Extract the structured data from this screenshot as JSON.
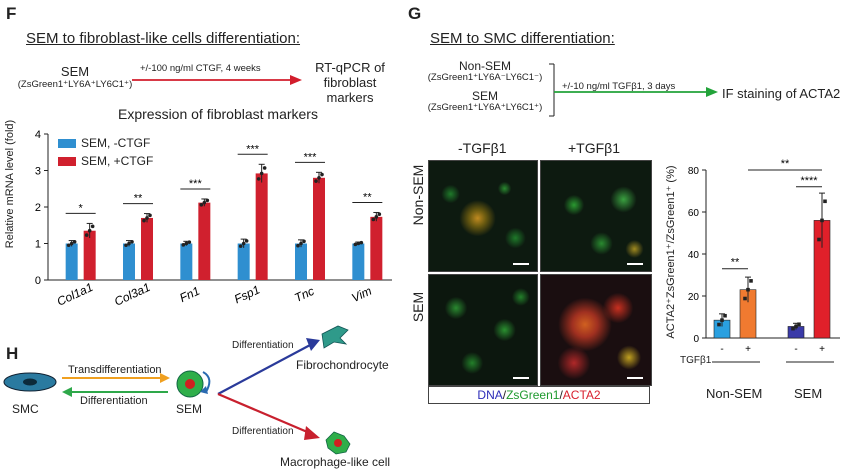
{
  "panel_F": {
    "letter": "F",
    "title": "SEM to fibroblast-like cells differentiation:",
    "source_line1": "SEM",
    "source_line2": "(ZsGreen1⁺LY6A⁺LY6C1⁺)",
    "arrow_label": "+/-100 ng/ml CTGF, 4 weeks",
    "target_line1": "RT-qPCR of",
    "target_line2": "fibroblast markers",
    "colors": {
      "control": "#2f8fd0",
      "treated": "#d0202e",
      "arrow": "#d21d2c"
    }
  },
  "panel_G": {
    "letter": "G",
    "title": "SEM to SMC differentiation:",
    "source1_line1": "Non-SEM",
    "source1_line2": "(ZsGreen1⁺LY6A⁻LY6C1⁻)",
    "source2_line1": "SEM",
    "source2_line2": "(ZsGreen1⁺LY6A⁺LY6C1⁺)",
    "arrow_label": "+/-10 ng/ml TGFβ1, 3 days",
    "target": "IF staining of ACTA2",
    "col_minus": "-TGFβ1",
    "col_plus": "+TGFβ1",
    "row_nonsem": "Non-SEM",
    "row_sem": "SEM",
    "stain_dna": "DNA",
    "stain_sep1": "/",
    "stain_zs": "ZsGreen1",
    "stain_sep2": "/",
    "stain_acta": "ACTA2",
    "colors": {
      "arrow": "#22a33a",
      "dna": "#2b2bb8",
      "zs": "#1e9a2e",
      "acta": "#d8202e"
    }
  },
  "panel_H": {
    "letter": "H",
    "smc_label": "SMC",
    "sem_label": "SEM",
    "trans_label": "Transdifferentiation",
    "diff_label": "Differentiation",
    "up_label": "Differentiation",
    "down_label": "Differentiation",
    "fibro_label": "Fibrochondrocyte",
    "macro_label": "Macrophage-like cell",
    "colors": {
      "trans": "#f0a020",
      "diff": "#2ea84a",
      "up": "#2a3a9a",
      "down": "#c8202e"
    }
  },
  "chart_data": [
    {
      "type": "bar",
      "title": "Expression of fibroblast markers",
      "ylabel": "Relative mRNA level (fold)",
      "ylim": [
        0,
        4
      ],
      "yticks": [
        "0",
        "1",
        "2",
        "3",
        "4"
      ],
      "categories": [
        "Col1a1",
        "Col3a1",
        "Fn1",
        "Fsp1",
        "Tnc",
        "Vim"
      ],
      "series": [
        {
          "name": "SEM, -CTGF",
          "values": [
            1.0,
            1.0,
            1.0,
            1.0,
            1.0,
            1.0
          ],
          "errors": [
            0.08,
            0.08,
            0.06,
            0.12,
            0.1,
            0.04
          ]
        },
        {
          "name": "SEM, +CTGF",
          "values": [
            1.35,
            1.7,
            2.12,
            2.92,
            2.8,
            1.73
          ],
          "errors": [
            0.2,
            0.12,
            0.1,
            0.25,
            0.15,
            0.12
          ]
        }
      ],
      "significance": [
        "*",
        "**",
        "***",
        "***",
        "***",
        "**"
      ],
      "legend": "top-left"
    },
    {
      "type": "bar",
      "ylabel": "ACTA2⁺ZsGreen1⁺/ZsGreen1⁺ (%)",
      "ylim": [
        0,
        80
      ],
      "yticks": [
        "0",
        "20",
        "40",
        "60",
        "80"
      ],
      "treatment_label": "TGFβ1",
      "treatment_values": [
        "-",
        "+",
        "-",
        "+"
      ],
      "groups": [
        "Non-SEM",
        "SEM"
      ],
      "bars": [
        {
          "group": "Non-SEM",
          "treatment": "-",
          "value": 8.5,
          "error": 3,
          "color": "#2aa0e0"
        },
        {
          "group": "Non-SEM",
          "treatment": "+",
          "value": 23,
          "error": 6,
          "color": "#f07a30"
        },
        {
          "group": "SEM",
          "treatment": "-",
          "value": 5.5,
          "error": 1.5,
          "color": "#3a3aa8"
        },
        {
          "group": "SEM",
          "treatment": "+",
          "value": 56,
          "error": 13,
          "color": "#e0202a"
        }
      ],
      "significance": [
        "**",
        "****",
        "**"
      ]
    }
  ]
}
